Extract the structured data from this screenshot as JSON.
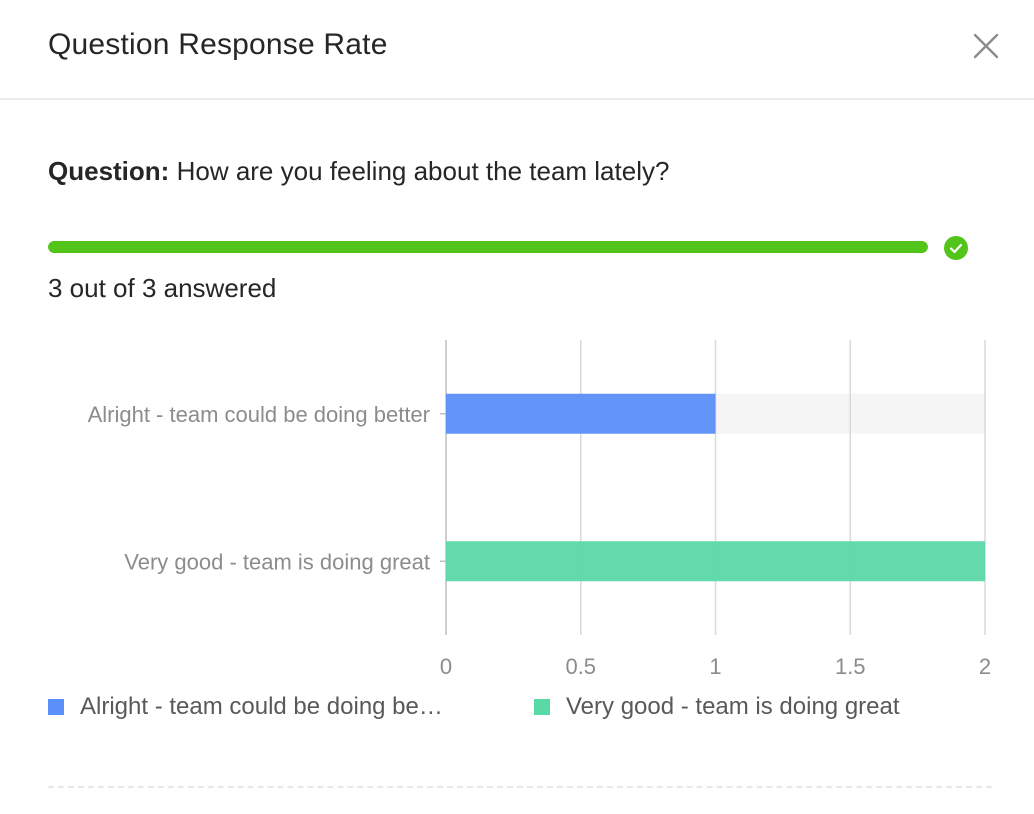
{
  "modal": {
    "title": "Question Response Rate",
    "close_icon": "close-icon"
  },
  "question": {
    "label": "Question:",
    "text": "How are you feeling about the team lately?"
  },
  "progress": {
    "fraction": 1.0,
    "answered_text": "3 out of 3 answered",
    "color": "#52c41a",
    "status_icon": "check-circle-icon"
  },
  "chart_data": {
    "type": "bar",
    "orientation": "horizontal",
    "categories": [
      "Alright - team could be doing better",
      "Very good - team is doing great"
    ],
    "values": [
      1,
      2
    ],
    "colors": [
      "#5b8ff9",
      "#5ad8a6"
    ],
    "xlim": [
      0,
      2
    ],
    "x_ticks": [
      "0",
      "0.5",
      "1",
      "1.5",
      "2"
    ],
    "x_tick_values": [
      0,
      0.5,
      1,
      1.5,
      2
    ],
    "grid": true,
    "legend_position": "bottom"
  },
  "legend": {
    "items": [
      {
        "label": "Alright - team could be doing be…",
        "color": "#5b8ff9"
      },
      {
        "label": "Very good - team is doing great",
        "color": "#5ad8a6"
      }
    ]
  }
}
